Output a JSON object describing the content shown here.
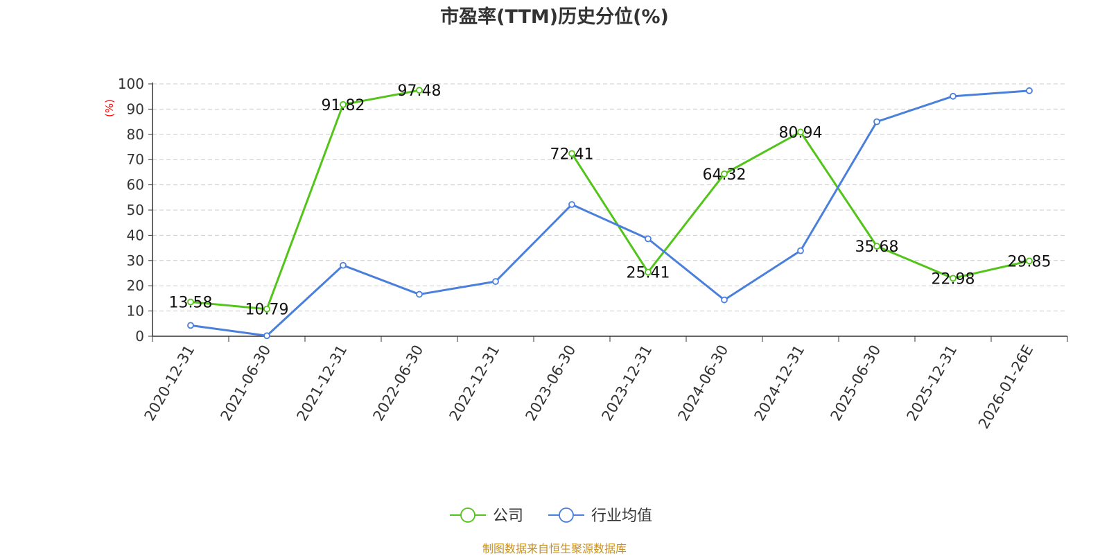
{
  "chart_data": {
    "type": "line",
    "title": "市盈率(TTM)历史分位(%)",
    "ylabel": "(%)",
    "xlabel": "",
    "categories": [
      "2020-12-31",
      "2021-06-30",
      "2021-12-31",
      "2022-06-30",
      "2022-12-31",
      "2023-06-30",
      "2023-12-31",
      "2024-06-30",
      "2024-12-31",
      "2025-06-30",
      "2025-12-31",
      "2026-01-26E"
    ],
    "series": [
      {
        "name": "公司",
        "color": "#52c41a",
        "values": [
          13.58,
          10.79,
          91.82,
          97.48,
          null,
          72.41,
          25.41,
          64.32,
          80.94,
          35.68,
          22.98,
          29.85
        ],
        "show_labels": true
      },
      {
        "name": "行业均值",
        "color": "#4a7fdc",
        "values": [
          4.3,
          0.2,
          28.1,
          16.6,
          21.7,
          52.2,
          38.6,
          14.4,
          33.9,
          85.0,
          95.1,
          97.3
        ],
        "show_labels": false
      }
    ],
    "ylim": [
      0,
      100
    ],
    "yticks": [
      0,
      10,
      20,
      30,
      40,
      50,
      60,
      70,
      80,
      90,
      100
    ],
    "grid": true,
    "legend_position": "bottom-center"
  },
  "source": "制图数据来自恒生聚源数据库"
}
